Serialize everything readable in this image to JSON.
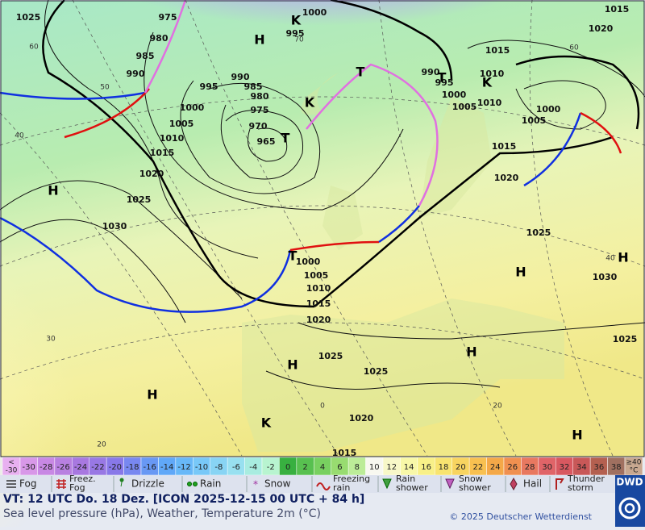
{
  "map": {
    "isobar_labels": [
      "1025",
      "975",
      "1000",
      "1015",
      "1020",
      "995",
      "980",
      "1015",
      "985",
      "990",
      "990",
      "995",
      "1010",
      "995",
      "990",
      "985",
      "980",
      "975",
      "1000",
      "970",
      "965",
      "1005",
      "1010",
      "1015",
      "1020",
      "1025",
      "1030",
      "1000",
      "1005",
      "1010",
      "1000",
      "1005",
      "1015",
      "1020",
      "1025",
      "1030",
      "1025",
      "1000",
      "1005",
      "1010",
      "1015",
      "1020",
      "1025",
      "1025",
      "1020",
      "1015"
    ],
    "centers": [
      "H",
      "H",
      "H",
      "H",
      "H",
      "H",
      "H",
      "H",
      "T",
      "T",
      "T",
      "T",
      "K",
      "K",
      "K",
      "K"
    ],
    "grid_labels": [
      "60",
      "50",
      "40",
      "30",
      "20",
      "70",
      "60",
      "40",
      "20",
      "0"
    ]
  },
  "temperature_scale": {
    "low_label": [
      "<",
      "-30"
    ],
    "low_color": "#e8b0f0",
    "steps": [
      {
        "label": "-30",
        "color": "#d898e8"
      },
      {
        "label": "-28",
        "color": "#c888e4"
      },
      {
        "label": "-26",
        "color": "#b880e0"
      },
      {
        "label": "-24",
        "color": "#a878e0"
      },
      {
        "label": "-22",
        "color": "#9878e4"
      },
      {
        "label": "-20",
        "color": "#8878e8"
      },
      {
        "label": "-18",
        "color": "#7888f0"
      },
      {
        "label": "-16",
        "color": "#6898f4"
      },
      {
        "label": "-14",
        "color": "#60a8f8"
      },
      {
        "label": "-12",
        "color": "#68b8f8"
      },
      {
        "label": "-10",
        "color": "#78c8f8"
      },
      {
        "label": "-8",
        "color": "#88d4f4"
      },
      {
        "label": "-6",
        "color": "#98e0f0"
      },
      {
        "label": "-4",
        "color": "#a8ece0"
      },
      {
        "label": "-2",
        "color": "#b8f4d0"
      },
      {
        "label": "0",
        "color": "#38b040"
      },
      {
        "label": "2",
        "color": "#58c050"
      },
      {
        "label": "4",
        "color": "#78d060"
      },
      {
        "label": "6",
        "color": "#98dc70"
      },
      {
        "label": "8",
        "color": "#bcec98"
      },
      {
        "label": "10",
        "color": "#f8f8f0"
      },
      {
        "label": "12",
        "color": "#f8f8c8"
      },
      {
        "label": "14",
        "color": "#f8f8a8"
      },
      {
        "label": "16",
        "color": "#f8f088"
      },
      {
        "label": "18",
        "color": "#f8e470"
      },
      {
        "label": "20",
        "color": "#f8d460"
      },
      {
        "label": "22",
        "color": "#f8c050"
      },
      {
        "label": "24",
        "color": "#f4a848"
      },
      {
        "label": "26",
        "color": "#f09050"
      },
      {
        "label": "28",
        "color": "#e87860"
      },
      {
        "label": "30",
        "color": "#e06468"
      },
      {
        "label": "32",
        "color": "#d85860"
      },
      {
        "label": "34",
        "color": "#c85858"
      },
      {
        "label": "36",
        "color": "#b46050"
      },
      {
        "label": "38",
        "color": "#a07060"
      }
    ],
    "high_label": [
      "≥40",
      "°C"
    ],
    "high_color": "#c8a890"
  },
  "weather_legend": [
    "Fog",
    "Freez. Fog",
    "Drizzle",
    "Rain",
    "Snow",
    "Freezing rain",
    "Rain shower",
    "Snow shower",
    "Hail",
    "Thunder storm"
  ],
  "footer": {
    "valid_time": "VT: 12 UTC Do.  18 Dez. [ICON 2025-12-15  00 UTC + 84 h]",
    "subtitle": "Sea level pressure (hPa), Weather, Temperature 2m (°C)",
    "copyright": "© 2025 Deutscher Wetterdienst",
    "logo": "DWD"
  }
}
